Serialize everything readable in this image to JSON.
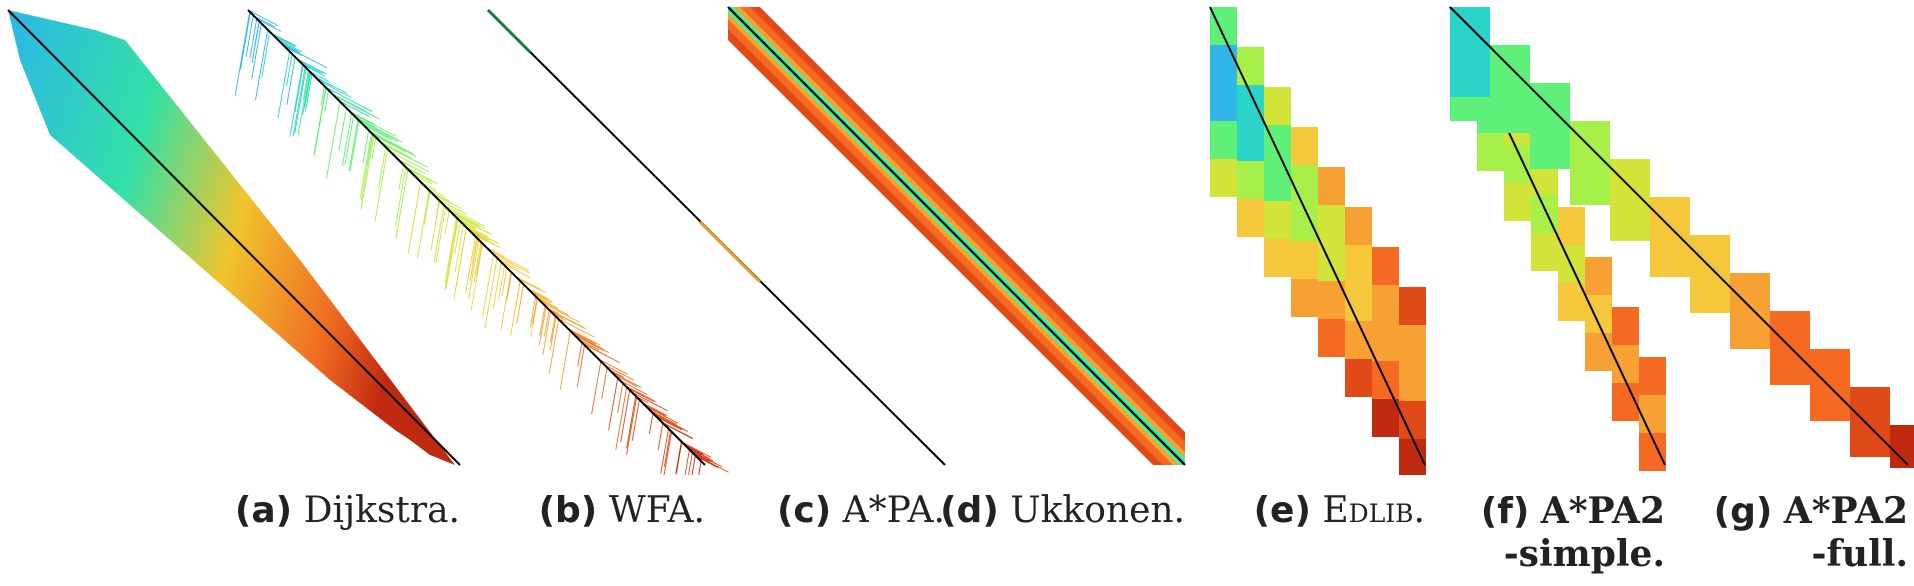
{
  "panels": [
    {
      "label": "(a)",
      "name": "Dijkstra."
    },
    {
      "label": "(b)",
      "name": "WFA."
    },
    {
      "label": "(c)",
      "name": "A*PA."
    },
    {
      "label": "(d)",
      "name": "Ukkonen."
    },
    {
      "label": "(e)",
      "name": "Edlib."
    },
    {
      "label": "(f)",
      "name_line1": "A*PA2",
      "name_line2": "-simple."
    },
    {
      "label": "(g)",
      "name_line1": "A*PA2",
      "name_line2": "-full."
    }
  ],
  "colormap": [
    "#30b6e8",
    "#2ad4c8",
    "#5ff07a",
    "#a7f04a",
    "#d2e43a",
    "#f4c83a",
    "#f7a034",
    "#f56a22",
    "#e04a18",
    "#c02a10"
  ]
}
